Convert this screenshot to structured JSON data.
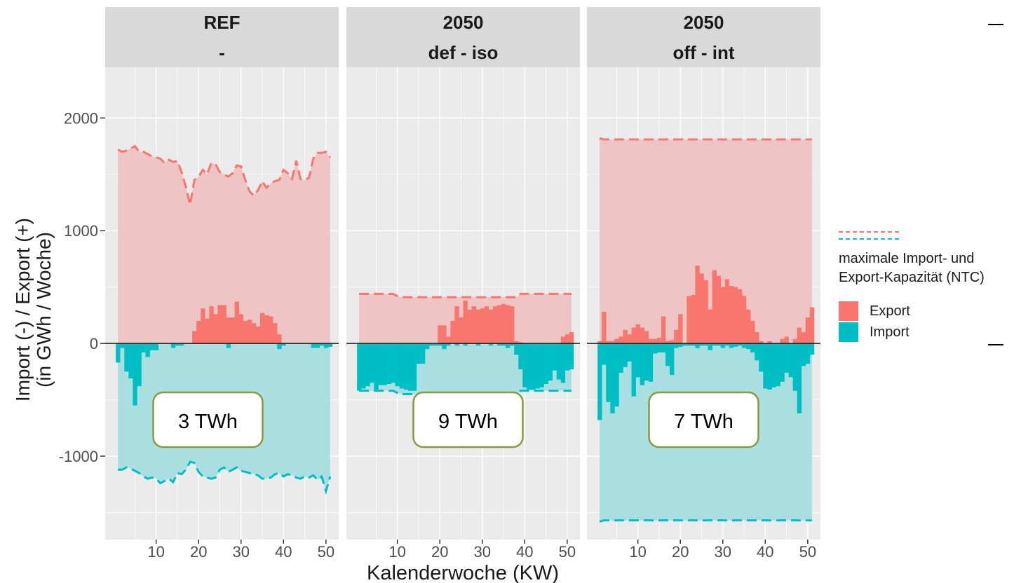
{
  "chart_data": {
    "type": "bar",
    "ylabel_line1": "Import (-) / Export (+)",
    "ylabel_line2": "(in GWh / Woche)",
    "xlabel": "Kalenderwoche (KW)",
    "ylim": [
      -1740,
      2450
    ],
    "xlim": [
      -2,
      53
    ],
    "yticks": [
      -1000,
      0,
      1000,
      2000
    ],
    "xticks": [
      10,
      20,
      30,
      40,
      50
    ],
    "colors": {
      "export": "#F8766D",
      "import": "#00BFC4",
      "export_fill": "#efc4c4",
      "import_fill": "#a9dfe1",
      "panel_bg": "#ebebeb",
      "strip_bg": "#d9d9d9",
      "box_border": "#8a9a3b"
    },
    "legend": {
      "title_line1": "maximale Import- und",
      "title_line2": "Export-Kapazität (NTC)",
      "items": [
        {
          "label": "Export",
          "color": "#F8766D"
        },
        {
          "label": "Import",
          "color": "#00BFC4"
        }
      ]
    },
    "panels": [
      {
        "strip_line1": "REF",
        "strip_line2": "-",
        "annotation": "3 TWh",
        "weeks": [
          1,
          51
        ],
        "export": [
          0,
          0,
          0,
          0,
          0,
          0,
          0,
          0,
          0,
          0,
          0,
          0,
          0,
          0,
          0,
          0,
          0,
          0,
          110,
          200,
          310,
          220,
          330,
          260,
          340,
          340,
          230,
          230,
          370,
          260,
          200,
          210,
          180,
          150,
          270,
          250,
          240,
          180,
          80,
          0,
          0,
          0,
          0,
          0,
          0,
          0,
          0,
          0,
          0,
          0,
          0
        ],
        "import": [
          -170,
          -40,
          -250,
          -310,
          -550,
          -380,
          -80,
          -120,
          -60,
          -60,
          0,
          0,
          0,
          -40,
          -20,
          -20,
          0,
          0,
          0,
          0,
          0,
          0,
          0,
          0,
          0,
          0,
          -40,
          0,
          0,
          0,
          0,
          0,
          0,
          0,
          0,
          0,
          0,
          0,
          -50,
          -20,
          0,
          0,
          0,
          0,
          0,
          0,
          -40,
          -40,
          -20,
          -40,
          -30
        ],
        "export_cap": [
          1720,
          1700,
          1710,
          1730,
          1750,
          1700,
          1700,
          1680,
          1660,
          1650,
          1640,
          1600,
          1630,
          1610,
          1620,
          1520,
          1390,
          1230,
          1450,
          1480,
          1540,
          1500,
          1600,
          1590,
          1520,
          1500,
          1480,
          1510,
          1580,
          1570,
          1450,
          1350,
          1310,
          1360,
          1440,
          1380,
          1420,
          1440,
          1450,
          1540,
          1510,
          1460,
          1620,
          1460,
          1450,
          1470,
          1640,
          1690,
          1690,
          1700,
          1650
        ],
        "import_cap": [
          -1120,
          -1120,
          -1100,
          -1110,
          -1130,
          -1150,
          -1180,
          -1200,
          -1190,
          -1200,
          -1240,
          -1220,
          -1200,
          -1230,
          -1150,
          -1160,
          -1120,
          -1050,
          -1060,
          -1140,
          -1180,
          -1190,
          -1200,
          -1190,
          -1120,
          -1100,
          -1140,
          -1120,
          -1100,
          -1130,
          -1140,
          -1150,
          -1160,
          -1170,
          -1200,
          -1200,
          -1190,
          -1160,
          -1150,
          -1180,
          -1160,
          -1170,
          -1190,
          -1200,
          -1180,
          -1190,
          -1170,
          -1210,
          -1180,
          -1310,
          -1180
        ]
      },
      {
        "strip_line1": "2050",
        "strip_line2": "def - iso",
        "annotation": "9 TWh",
        "weeks": [
          1,
          51
        ],
        "export": [
          0,
          0,
          0,
          0,
          0,
          0,
          0,
          0,
          0,
          0,
          0,
          0,
          0,
          0,
          0,
          0,
          0,
          0,
          0,
          160,
          160,
          60,
          200,
          330,
          230,
          380,
          300,
          330,
          300,
          310,
          330,
          300,
          330,
          340,
          350,
          340,
          330,
          20,
          10,
          0,
          0,
          0,
          0,
          0,
          0,
          0,
          0,
          0,
          60,
          80,
          100
        ],
        "import": [
          -420,
          -400,
          -380,
          -350,
          -410,
          -370,
          -370,
          -360,
          -350,
          -380,
          -400,
          -410,
          -420,
          -420,
          -180,
          -180,
          -50,
          -20,
          -20,
          -20,
          -50,
          -20,
          0,
          -20,
          0,
          -20,
          0,
          0,
          -20,
          0,
          0,
          -20,
          0,
          -20,
          -20,
          -40,
          -20,
          -100,
          -230,
          -390,
          -410,
          -410,
          -400,
          -390,
          -360,
          -330,
          -240,
          -320,
          -350,
          -240,
          -230
        ],
        "export_cap": [
          440,
          440,
          440,
          440,
          440,
          440,
          440,
          440,
          440,
          420,
          410,
          410,
          410,
          410,
          410,
          410,
          410,
          410,
          410,
          410,
          410,
          410,
          410,
          410,
          410,
          410,
          410,
          410,
          410,
          410,
          410,
          410,
          410,
          410,
          410,
          410,
          410,
          410,
          440,
          440,
          440,
          440,
          440,
          440,
          440,
          440,
          440,
          440,
          440,
          440,
          440
        ],
        "import_cap": [
          -420,
          -420,
          -420,
          -420,
          -420,
          -420,
          -420,
          -420,
          -420,
          -440,
          -450,
          -450,
          -450,
          -450,
          -450,
          -450,
          -450,
          -450,
          -450,
          -450,
          -450,
          -450,
          -450,
          -450,
          -450,
          -450,
          -450,
          -450,
          -450,
          -450,
          -450,
          -450,
          -450,
          -450,
          -450,
          -450,
          -450,
          -450,
          -420,
          -420,
          -420,
          -420,
          -420,
          -420,
          -420,
          -420,
          -420,
          -420,
          -420,
          -420,
          -420
        ]
      },
      {
        "strip_line1": "2050",
        "strip_line2": "off - int",
        "annotation": "7 TWh",
        "weeks": [
          1,
          51
        ],
        "export": [
          20,
          280,
          20,
          20,
          40,
          60,
          120,
          80,
          140,
          170,
          140,
          110,
          40,
          40,
          50,
          240,
          20,
          30,
          120,
          260,
          0,
          420,
          430,
          690,
          620,
          560,
          300,
          650,
          600,
          500,
          570,
          510,
          500,
          480,
          420,
          300,
          200,
          100,
          20,
          0,
          20,
          0,
          0,
          40,
          60,
          0,
          40,
          140,
          100,
          230,
          320
        ],
        "import": [
          -680,
          -190,
          -520,
          -620,
          -560,
          -260,
          -210,
          -160,
          -470,
          -300,
          -370,
          -330,
          -340,
          -90,
          -80,
          -80,
          -200,
          -280,
          -40,
          -30,
          -20,
          -20,
          -20,
          -40,
          -20,
          -20,
          -60,
          -20,
          -20,
          -40,
          -20,
          -40,
          -30,
          -20,
          -40,
          -50,
          -80,
          -150,
          -250,
          -400,
          -410,
          -390,
          -380,
          -340,
          -260,
          -300,
          -420,
          -620,
          -200,
          -180,
          -100
        ],
        "export_cap": [
          1820,
          1810,
          1810,
          1810,
          1810,
          1810,
          1810,
          1810,
          1810,
          1810,
          1810,
          1810,
          1810,
          1810,
          1810,
          1810,
          1810,
          1810,
          1810,
          1810,
          1810,
          1810,
          1810,
          1810,
          1810,
          1810,
          1810,
          1810,
          1810,
          1810,
          1810,
          1810,
          1810,
          1810,
          1810,
          1810,
          1810,
          1810,
          1810,
          1810,
          1810,
          1810,
          1810,
          1810,
          1810,
          1810,
          1810,
          1810,
          1810,
          1810,
          1810
        ],
        "import_cap": [
          -1580,
          -1570,
          -1570,
          -1570,
          -1570,
          -1570,
          -1570,
          -1570,
          -1570,
          -1570,
          -1570,
          -1570,
          -1570,
          -1570,
          -1570,
          -1570,
          -1570,
          -1570,
          -1570,
          -1570,
          -1570,
          -1570,
          -1570,
          -1570,
          -1570,
          -1570,
          -1570,
          -1570,
          -1570,
          -1570,
          -1570,
          -1570,
          -1570,
          -1570,
          -1570,
          -1570,
          -1570,
          -1570,
          -1570,
          -1570,
          -1570,
          -1570,
          -1570,
          -1570,
          -1570,
          -1570,
          -1570,
          -1570,
          -1570,
          -1570,
          -1570
        ]
      }
    ]
  }
}
